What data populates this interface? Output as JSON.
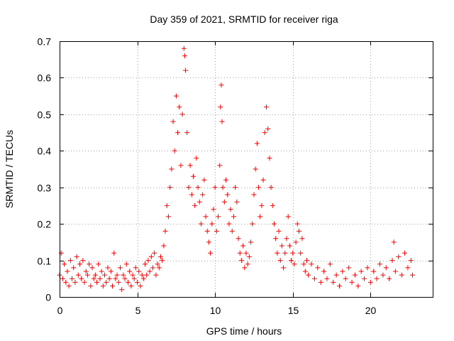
{
  "chart_data": {
    "type": "scatter",
    "title": "Day 359 of 2021, SRMTID for receiver riga",
    "xlabel": "GPS time / hours",
    "ylabel": "SRMTID / TECUs",
    "xlim": [
      0,
      24
    ],
    "ylim": [
      0,
      0.7
    ],
    "x_ticks": [
      0,
      5,
      10,
      15,
      20
    ],
    "x_tick_labels": [
      "0",
      "5",
      "10",
      "15",
      "20"
    ],
    "y_ticks": [
      0,
      0.1,
      0.2,
      0.3,
      0.4,
      0.5,
      0.6,
      0.7
    ],
    "y_tick_labels": [
      "0",
      "0.1",
      "0.2",
      "0.3",
      "0.4",
      "0.5",
      "0.6",
      "0.7"
    ],
    "grid": true,
    "marker": "plus",
    "color": "#ff0000",
    "series": [
      {
        "name": "SRMTID",
        "points": [
          [
            0.0,
            0.06
          ],
          [
            0.1,
            0.12
          ],
          [
            0.2,
            0.05
          ],
          [
            0.3,
            0.09
          ],
          [
            0.4,
            0.04
          ],
          [
            0.5,
            0.07
          ],
          [
            0.6,
            0.03
          ],
          [
            0.7,
            0.1
          ],
          [
            0.8,
            0.05
          ],
          [
            0.9,
            0.08
          ],
          [
            1.0,
            0.04
          ],
          [
            1.1,
            0.11
          ],
          [
            1.2,
            0.06
          ],
          [
            1.3,
            0.09
          ],
          [
            1.4,
            0.05
          ],
          [
            1.5,
            0.1
          ],
          [
            1.6,
            0.04
          ],
          [
            1.7,
            0.07
          ],
          [
            1.8,
            0.06
          ],
          [
            1.9,
            0.09
          ],
          [
            2.0,
            0.03
          ],
          [
            2.1,
            0.08
          ],
          [
            2.2,
            0.05
          ],
          [
            2.3,
            0.06
          ],
          [
            2.4,
            0.04
          ],
          [
            2.5,
            0.09
          ],
          [
            2.6,
            0.05
          ],
          [
            2.7,
            0.07
          ],
          [
            2.8,
            0.03
          ],
          [
            2.9,
            0.06
          ],
          [
            3.0,
            0.04
          ],
          [
            3.1,
            0.08
          ],
          [
            3.2,
            0.05
          ],
          [
            3.3,
            0.07
          ],
          [
            3.4,
            0.03
          ],
          [
            3.5,
            0.12
          ],
          [
            3.6,
            0.05
          ],
          [
            3.7,
            0.06
          ],
          [
            3.8,
            0.04
          ],
          [
            3.9,
            0.08
          ],
          [
            4.0,
            0.02
          ],
          [
            4.1,
            0.06
          ],
          [
            4.2,
            0.05
          ],
          [
            4.3,
            0.09
          ],
          [
            4.4,
            0.04
          ],
          [
            4.5,
            0.07
          ],
          [
            4.6,
            0.03
          ],
          [
            4.7,
            0.06
          ],
          [
            4.8,
            0.05
          ],
          [
            4.9,
            0.08
          ],
          [
            5.0,
            0.04
          ],
          [
            5.1,
            0.07
          ],
          [
            5.2,
            0.03
          ],
          [
            5.3,
            0.06
          ],
          [
            5.4,
            0.05
          ],
          [
            5.5,
            0.09
          ],
          [
            5.6,
            0.06
          ],
          [
            5.7,
            0.1
          ],
          [
            5.8,
            0.07
          ],
          [
            5.9,
            0.11
          ],
          [
            6.0,
            0.08
          ],
          [
            6.1,
            0.12
          ],
          [
            6.2,
            0.06
          ],
          [
            6.3,
            0.09
          ],
          [
            6.4,
            0.08
          ],
          [
            6.5,
            0.11
          ],
          [
            6.6,
            0.1
          ],
          [
            6.7,
            0.14
          ],
          [
            6.8,
            0.18
          ],
          [
            6.9,
            0.25
          ],
          [
            7.0,
            0.22
          ],
          [
            7.1,
            0.3
          ],
          [
            7.2,
            0.35
          ],
          [
            7.3,
            0.48
          ],
          [
            7.4,
            0.4
          ],
          [
            7.5,
            0.55
          ],
          [
            7.6,
            0.45
          ],
          [
            7.7,
            0.52
          ],
          [
            7.8,
            0.36
          ],
          [
            7.9,
            0.5
          ],
          [
            8.0,
            0.68
          ],
          [
            8.05,
            0.66
          ],
          [
            8.1,
            0.62
          ],
          [
            8.2,
            0.45
          ],
          [
            8.3,
            0.3
          ],
          [
            8.4,
            0.36
          ],
          [
            8.5,
            0.28
          ],
          [
            8.6,
            0.33
          ],
          [
            8.7,
            0.25
          ],
          [
            8.8,
            0.38
          ],
          [
            8.9,
            0.3
          ],
          [
            9.0,
            0.26
          ],
          [
            9.1,
            0.2
          ],
          [
            9.2,
            0.28
          ],
          [
            9.3,
            0.32
          ],
          [
            9.4,
            0.22
          ],
          [
            9.5,
            0.18
          ],
          [
            9.6,
            0.15
          ],
          [
            9.7,
            0.12
          ],
          [
            9.8,
            0.2
          ],
          [
            9.9,
            0.24
          ],
          [
            10.0,
            0.3
          ],
          [
            10.1,
            0.18
          ],
          [
            10.2,
            0.22
          ],
          [
            10.3,
            0.36
          ],
          [
            10.35,
            0.52
          ],
          [
            10.4,
            0.58
          ],
          [
            10.45,
            0.48
          ],
          [
            10.5,
            0.3
          ],
          [
            10.6,
            0.26
          ],
          [
            10.7,
            0.32
          ],
          [
            10.8,
            0.28
          ],
          [
            10.9,
            0.2
          ],
          [
            11.0,
            0.24
          ],
          [
            11.1,
            0.18
          ],
          [
            11.2,
            0.22
          ],
          [
            11.3,
            0.3
          ],
          [
            11.4,
            0.26
          ],
          [
            11.5,
            0.16
          ],
          [
            11.6,
            0.12
          ],
          [
            11.7,
            0.1
          ],
          [
            11.8,
            0.14
          ],
          [
            11.9,
            0.08
          ],
          [
            12.0,
            0.12
          ],
          [
            12.1,
            0.09
          ],
          [
            12.2,
            0.11
          ],
          [
            12.3,
            0.15
          ],
          [
            12.4,
            0.2
          ],
          [
            12.5,
            0.28
          ],
          [
            12.6,
            0.35
          ],
          [
            12.7,
            0.42
          ],
          [
            12.8,
            0.3
          ],
          [
            12.9,
            0.22
          ],
          [
            13.0,
            0.25
          ],
          [
            13.1,
            0.32
          ],
          [
            13.2,
            0.45
          ],
          [
            13.3,
            0.52
          ],
          [
            13.4,
            0.46
          ],
          [
            13.5,
            0.38
          ],
          [
            13.6,
            0.3
          ],
          [
            13.7,
            0.25
          ],
          [
            13.8,
            0.2
          ],
          [
            13.9,
            0.16
          ],
          [
            14.0,
            0.12
          ],
          [
            14.1,
            0.18
          ],
          [
            14.2,
            0.1
          ],
          [
            14.3,
            0.14
          ],
          [
            14.4,
            0.08
          ],
          [
            14.5,
            0.12
          ],
          [
            14.6,
            0.16
          ],
          [
            14.7,
            0.22
          ],
          [
            14.8,
            0.14
          ],
          [
            14.9,
            0.1
          ],
          [
            15.0,
            0.12
          ],
          [
            15.1,
            0.09
          ],
          [
            15.2,
            0.15
          ],
          [
            15.3,
            0.2
          ],
          [
            15.4,
            0.18
          ],
          [
            15.5,
            0.12
          ],
          [
            15.6,
            0.16
          ],
          [
            15.7,
            0.09
          ],
          [
            15.8,
            0.07
          ],
          [
            15.9,
            0.1
          ],
          [
            16.0,
            0.06
          ],
          [
            16.2,
            0.09
          ],
          [
            16.4,
            0.05
          ],
          [
            16.6,
            0.08
          ],
          [
            16.8,
            0.04
          ],
          [
            17.0,
            0.07
          ],
          [
            17.2,
            0.05
          ],
          [
            17.4,
            0.09
          ],
          [
            17.6,
            0.04
          ],
          [
            17.8,
            0.06
          ],
          [
            18.0,
            0.03
          ],
          [
            18.2,
            0.07
          ],
          [
            18.4,
            0.05
          ],
          [
            18.6,
            0.08
          ],
          [
            18.8,
            0.04
          ],
          [
            19.0,
            0.06
          ],
          [
            19.2,
            0.03
          ],
          [
            19.4,
            0.07
          ],
          [
            19.6,
            0.05
          ],
          [
            19.8,
            0.08
          ],
          [
            20.0,
            0.04
          ],
          [
            20.2,
            0.07
          ],
          [
            20.4,
            0.05
          ],
          [
            20.6,
            0.09
          ],
          [
            20.8,
            0.06
          ],
          [
            21.0,
            0.08
          ],
          [
            21.2,
            0.05
          ],
          [
            21.4,
            0.1
          ],
          [
            21.5,
            0.15
          ],
          [
            21.6,
            0.07
          ],
          [
            21.8,
            0.11
          ],
          [
            22.0,
            0.06
          ],
          [
            22.2,
            0.12
          ],
          [
            22.4,
            0.08
          ],
          [
            22.6,
            0.1
          ],
          [
            22.7,
            0.06
          ]
        ]
      }
    ]
  }
}
